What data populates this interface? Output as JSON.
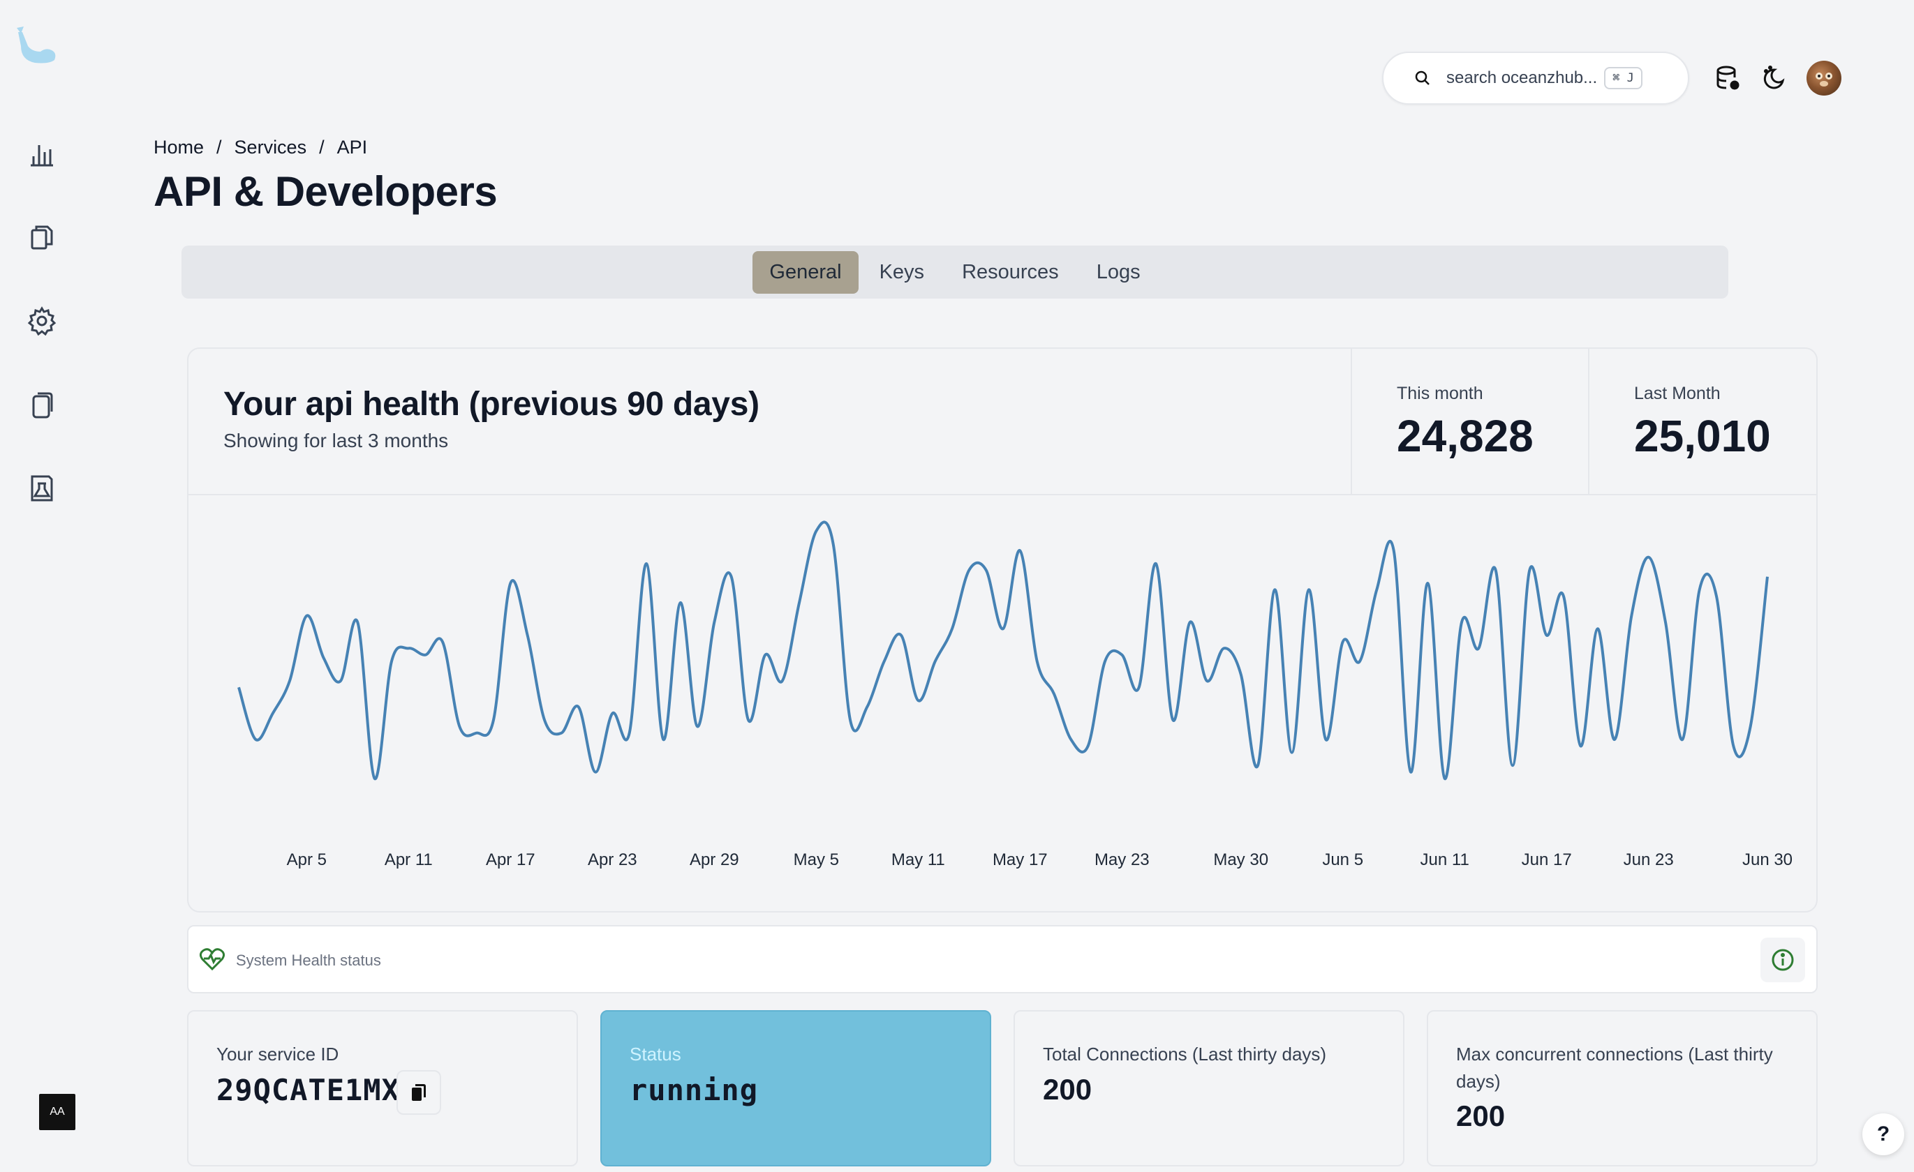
{
  "search": {
    "placeholder": "search oceanzhub...",
    "shortcut": "⌘ J"
  },
  "breadcrumb": [
    "Home",
    "/",
    "Services",
    "/",
    "API"
  ],
  "page_title": "API & Developers",
  "tabs": [
    {
      "label": "General",
      "active": true
    },
    {
      "label": "Keys",
      "active": false
    },
    {
      "label": "Resources",
      "active": false
    },
    {
      "label": "Logs",
      "active": false
    }
  ],
  "health_card": {
    "title": "Your api health (previous 90 days)",
    "subtitle": "Showing for last 3 months",
    "this_month_label": "This month",
    "this_month_value": "24,828",
    "last_month_label": "Last Month",
    "last_month_value": "25,010"
  },
  "chart_data": {
    "type": "line",
    "title": "",
    "xlabel": "",
    "ylabel": "",
    "x_ticks": [
      "Apr 5",
      "Apr 11",
      "Apr 17",
      "Apr 23",
      "Apr 29",
      "May 5",
      "May 11",
      "May 17",
      "May 23",
      "May 30",
      "Jun 5",
      "Jun 11",
      "Jun 17",
      "Jun 23",
      "Jun 30"
    ],
    "x_start": "Apr 1",
    "values": [
      200,
      120,
      160,
      210,
      310,
      245,
      210,
      300,
      60,
      240,
      260,
      250,
      270,
      140,
      130,
      150,
      360,
      280,
      150,
      130,
      170,
      70,
      160,
      130,
      390,
      120,
      330,
      140,
      300,
      370,
      150,
      250,
      210,
      330,
      440,
      420,
      150,
      170,
      240,
      280,
      180,
      240,
      290,
      380,
      380,
      290,
      410,
      240,
      190,
      120,
      110,
      240,
      250,
      200,
      390,
      150,
      300,
      210,
      260,
      220,
      80,
      350,
      100,
      350,
      120,
      270,
      240,
      350,
      410,
      70,
      360,
      60,
      300,
      260,
      380,
      80,
      380,
      280,
      340,
      110,
      290,
      120,
      310,
      400,
      300,
      120,
      350,
      340,
      110,
      140,
      370
    ],
    "line_color": "#4682b4",
    "grid": false
  },
  "system_health": {
    "label": "System Health status"
  },
  "service_cards": [
    {
      "label": "Your service ID",
      "value": "29QCATE1MX"
    },
    {
      "label": "Status",
      "value": "running"
    },
    {
      "label": "Total Connections (Last thirty days)",
      "value": "200"
    },
    {
      "label": "Max concurrent connections (Last thirty days)",
      "value": "200"
    }
  ],
  "sidebar": {
    "accessibility_label": "AA"
  },
  "help": {
    "label": "?"
  },
  "colors": {
    "accent": "#a8a190",
    "status_bg": "#72c0dc",
    "line": "#4682b4"
  }
}
